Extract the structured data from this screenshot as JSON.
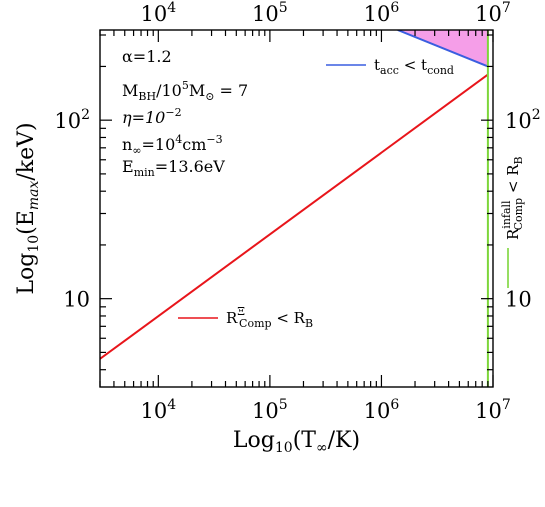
{
  "chart_data": {
    "type": "line",
    "x_scale": "log",
    "y_scale": "log",
    "xlim": [
      3000,
      10000000
    ],
    "ylim": [
      3.2,
      320
    ],
    "x_ticks": [
      {
        "value": 10000,
        "label": "10",
        "exp": "4"
      },
      {
        "value": 100000,
        "label": "10",
        "exp": "5"
      },
      {
        "value": 1000000,
        "label": "10",
        "exp": "6"
      },
      {
        "value": 10000000,
        "label": "10",
        "exp": "7"
      }
    ],
    "y_ticks": [
      {
        "value": 10,
        "label": "10",
        "exp": ""
      },
      {
        "value": 100,
        "label": "10",
        "exp": "2"
      }
    ],
    "xlabel": {
      "pre": "Log",
      "sub": "10",
      "mid": "(T",
      "var_sub": "∞",
      "post": "/K)"
    },
    "ylabel": {
      "pre": "Log",
      "sub": "10",
      "mid": "(E",
      "var_sub": "max",
      "post": "/keV)"
    },
    "series": [
      {
        "name": "R^Ξ_Comp < R_B",
        "color": "#e8151b",
        "x": [
          3000,
          9000000
        ],
        "y": [
          4.6,
          180
        ]
      },
      {
        "name": "t_acc < t_cond",
        "color": "#3a5ee0",
        "x": [
          1400000,
          9000000
        ],
        "y": [
          320,
          200
        ]
      },
      {
        "name": "R^infall_Comp < R_B",
        "color": "#7dd63a",
        "x": [
          9000000,
          9000000
        ],
        "y": [
          3.2,
          320
        ]
      }
    ],
    "shaded_region": {
      "color": "#f59ee8",
      "x": [
        1400000,
        9000000,
        9000000
      ],
      "y": [
        320,
        200,
        320
      ]
    },
    "legend": [
      {
        "text": "t",
        "sub": "acc",
        "mid": " < t",
        "sub2": "cond"
      },
      {
        "text": "R",
        "sup": "Ξ",
        "sub": "Comp",
        "mid": " < R",
        "sub2": "B"
      },
      {
        "text": "R",
        "sup": "infall",
        "sub": "Comp",
        "mid": " < R",
        "sub2": "B"
      }
    ],
    "annotations": {
      "alpha": "α=1.2",
      "mbh": {
        "a": "M",
        "a_sub": "BH",
        "b": "/10",
        "b_sup": "5",
        "c": "M",
        "c_sub": "⊙",
        "d": " = 7"
      },
      "eta": {
        "a": "η=10",
        "a_sup": "−2"
      },
      "n": {
        "a": "n",
        "a_sub": "∞",
        "b": "=10",
        "b_sup": "4",
        "c": "cm",
        "c_sup": "−3"
      },
      "emin": {
        "a": "E",
        "a_sub": "min",
        "b": "=13.6eV"
      }
    }
  }
}
